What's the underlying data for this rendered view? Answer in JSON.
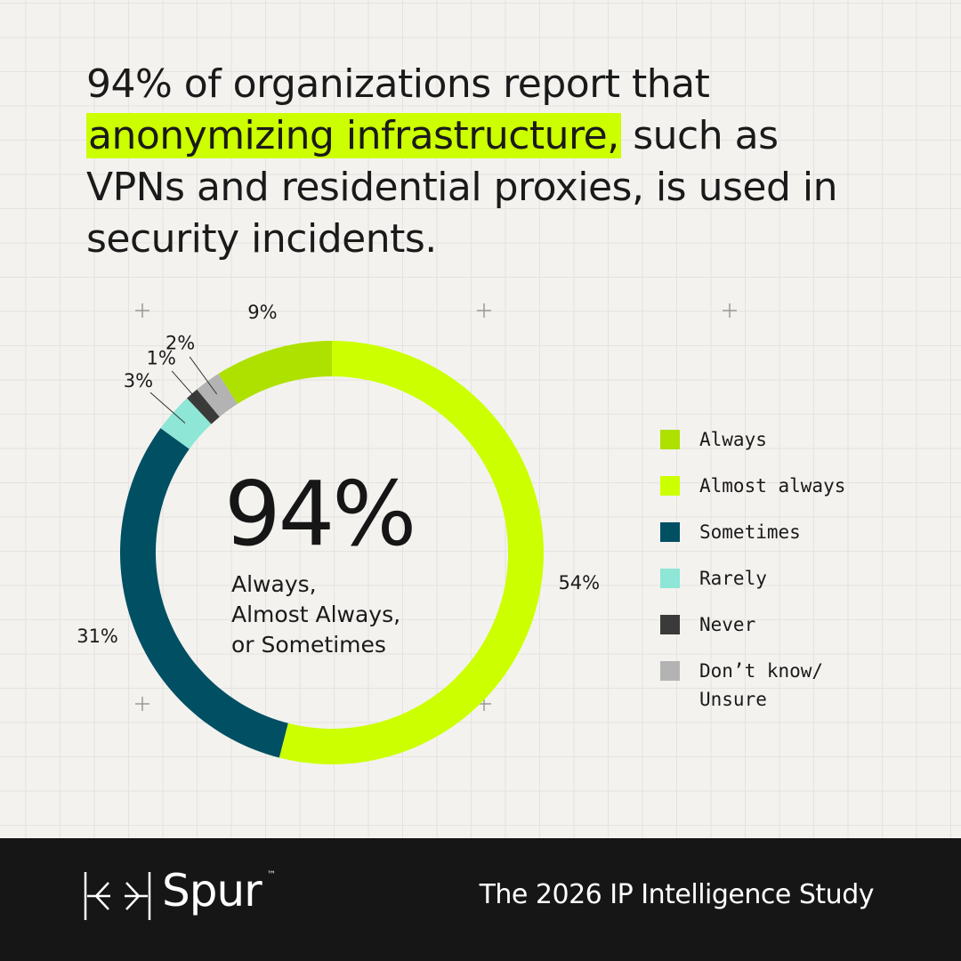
{
  "header": {
    "title_before": "94% of organizations report that",
    "title_highlight": "anonymizing infrastructure,",
    "title_after": "such as VPNs and residential proxies, is used in security incidents."
  },
  "chart_data": {
    "type": "donut",
    "categories": [
      "Always",
      "Almost always",
      "Sometimes",
      "Rarely",
      "Never",
      "Don’t know/ Unsure"
    ],
    "values": [
      9,
      54,
      31,
      3,
      1,
      2
    ],
    "value_labels": [
      "9%",
      "54%",
      "31%",
      "3%",
      "1%",
      "2%"
    ],
    "colors": [
      "#aee000",
      "#ccff00",
      "#004f63",
      "#8ee6d6",
      "#3a3a3a",
      "#b3b3b3"
    ],
    "clockwise_order": [
      "Almost always",
      "Sometimes",
      "Rarely",
      "Never",
      "Don’t know/ Unsure",
      "Always"
    ],
    "center_value": "94%",
    "center_label": [
      "Always,",
      "Almost Always,",
      "or Sometimes"
    ],
    "legend": "right"
  },
  "footer": {
    "brand": "Spur",
    "trademark": "™",
    "study": "The 2026 IP Intelligence Study"
  }
}
